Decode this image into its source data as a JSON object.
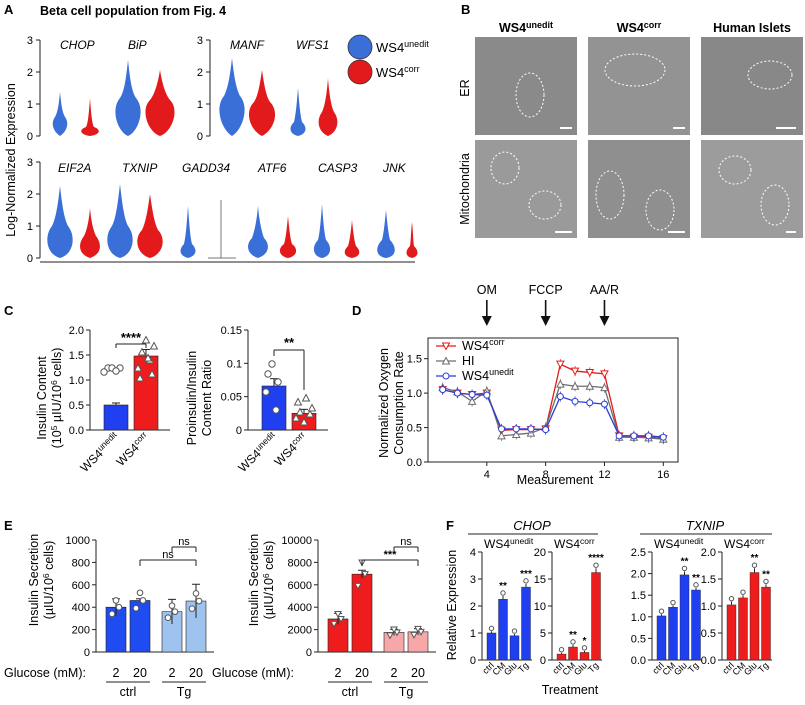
{
  "figure": {
    "panel_letters": {
      "A": "A",
      "B": "B",
      "C": "C",
      "D": "D",
      "E": "E",
      "F": "F"
    }
  },
  "panel_a": {
    "title": "Beta cell population from Fig. 4",
    "ylabel": "Log-Normalized Expression",
    "legend": [
      {
        "base": "WS4",
        "sup": "unedit",
        "color": "#3a6fd8"
      },
      {
        "base": "WS4",
        "sup": "corr",
        "color": "#e31a1c"
      }
    ],
    "row1_left": {
      "genes": [
        "CHOP",
        "BiP"
      ],
      "yticks": [
        "0",
        "1",
        "2",
        "3"
      ]
    },
    "row1_right": {
      "genes": [
        "MANF",
        "WFS1"
      ],
      "yticks": [
        "0",
        "1",
        "2",
        "3"
      ]
    },
    "row2": {
      "genes": [
        "EIF2A",
        "TXNIP",
        "GADD34",
        "ATF6",
        "CASP3",
        "JNK"
      ],
      "yticks": [
        "0",
        "1",
        "2",
        "3"
      ]
    }
  },
  "panel_b": {
    "columns": [
      {
        "base": "WS4",
        "sup": "unedit"
      },
      {
        "base": "WS4",
        "sup": "corr"
      },
      {
        "base": "Human Islets",
        "sup": ""
      }
    ],
    "rows": [
      "ER",
      "Mitochondria"
    ]
  },
  "panel_c": {
    "left": {
      "ylabel1": "Insulin Content",
      "ylabel2": "(10",
      "ylabel2_sup": "5",
      "ylabel2_mid": " µIU/10",
      "ylabel2_sup2": "6",
      "ylabel2_end": " cells)",
      "yticks": [
        "0.0",
        "0.5",
        "1.0",
        "1.5",
        "2.0"
      ],
      "significance": "****",
      "categories": [
        {
          "base": "WS4",
          "sup": "unedit"
        },
        {
          "base": "WS4",
          "sup": "corr"
        }
      ],
      "values": [
        0.5,
        1.48
      ],
      "errors": [
        0.04,
        0.13
      ]
    },
    "right": {
      "ylabel1": "Proinsulin/Insulin",
      "ylabel2": "Content Ratio",
      "yticks": [
        "0",
        "0.05",
        "0.1",
        "0.15"
      ],
      "significance": "**",
      "categories": [
        {
          "base": "WS4",
          "sup": "unedit"
        },
        {
          "base": "WS4",
          "sup": "corr"
        }
      ],
      "values": [
        0.066,
        0.025
      ],
      "errors": [
        0.011,
        0.006
      ]
    }
  },
  "panel_d": {
    "ylabel1": "Normalized Oxygen",
    "ylabel2": "Consumption Rate",
    "xlabel": "Measurement",
    "xticks": [
      "4",
      "8",
      "12",
      "16"
    ],
    "yticks": [
      "0.0",
      "0.5",
      "1.0",
      "1.5"
    ],
    "arrows": [
      "OM",
      "FCCP",
      "AA/R"
    ],
    "legend": [
      {
        "base": "WS4",
        "sup": "corr",
        "color": "#e31a1c",
        "marker": "triangle-down"
      },
      {
        "base": "HI",
        "sup": "",
        "color": "#6d6d6d",
        "marker": "triangle-up"
      },
      {
        "base": "WS4",
        "sup": "unedit",
        "color": "#2b3fd6",
        "marker": "circle"
      }
    ],
    "chart_data": {
      "type": "line",
      "x": [
        1,
        2,
        3,
        4,
        5,
        6,
        7,
        8,
        9,
        10,
        11,
        12,
        13,
        14,
        15,
        16
      ],
      "xlabel": "Measurement",
      "ylabel": "Normalized Oxygen Consumption Rate",
      "ylim": [
        0,
        1.8
      ],
      "series": [
        {
          "name": "WS4corr",
          "values": [
            1.05,
            1.0,
            0.98,
            1.0,
            0.46,
            0.47,
            0.47,
            0.48,
            1.42,
            1.32,
            1.3,
            1.28,
            0.38,
            0.36,
            0.36,
            0.34
          ]
        },
        {
          "name": "HI",
          "values": [
            1.08,
            1.02,
            0.88,
            1.03,
            0.38,
            0.4,
            0.42,
            0.5,
            1.13,
            1.1,
            1.1,
            1.08,
            0.36,
            0.36,
            0.35,
            0.33
          ]
        },
        {
          "name": "WS4unedit",
          "values": [
            1.05,
            1.0,
            0.98,
            0.97,
            0.48,
            0.48,
            0.48,
            0.47,
            0.95,
            0.88,
            0.86,
            0.84,
            0.38,
            0.38,
            0.38,
            0.36
          ]
        }
      ]
    }
  },
  "panel_e": {
    "ylabel1": "Insulin Secretion",
    "ylabel2": "(µIU/10",
    "ylabel2_sup": "6",
    "ylabel2_end": " cells)",
    "glucose_label": "Glucose (mM):",
    "dose_labels": [
      "2",
      "20",
      "2",
      "20"
    ],
    "group_labels": [
      "ctrl",
      "Tg"
    ],
    "left": {
      "yticks": [
        "0",
        "200",
        "400",
        "600",
        "800",
        "1000"
      ],
      "ymax": 1000,
      "values": [
        400,
        460,
        360,
        455
      ],
      "errors": [
        75,
        15,
        110,
        150
      ],
      "colors": [
        "#1f4cf0",
        "#1f4cf0",
        "#9dc3ee",
        "#9dc3ee"
      ],
      "sig_inner": "ns",
      "sig_outer": "ns"
    },
    "right": {
      "yticks": [
        "0",
        "2000",
        "4000",
        "6000",
        "8000",
        "10000"
      ],
      "ymax": 10000,
      "values": [
        2950,
        6950,
        1750,
        1800
      ],
      "errors": [
        500,
        350,
        280,
        280
      ],
      "colors": [
        "#ee1c1c",
        "#ee1c1c",
        "#f6a8a8",
        "#f6a8a8"
      ],
      "sig_inner": "ns",
      "sig_outer": "***"
    }
  },
  "panel_f": {
    "genes": [
      "CHOP",
      "TXNIP"
    ],
    "ylabel": "Relative Expression",
    "xlabel": "Treatment",
    "xcats": [
      "ctrl",
      "CM",
      "Glu",
      "Tg"
    ],
    "subpanels": [
      {
        "gene": "CHOP",
        "title_base": "WS4",
        "title_sup": "unedit",
        "yticks": [
          "0",
          "1",
          "2",
          "3",
          "4"
        ],
        "ymax": 4,
        "values": [
          1.0,
          2.25,
          0.9,
          2.7
        ],
        "errors": [
          0.06,
          0.12,
          0.06,
          0.12
        ],
        "sig": [
          "",
          "**",
          "",
          "***"
        ],
        "color": "#1f3ff0"
      },
      {
        "gene": "CHOP",
        "title_base": "WS4",
        "title_sup": "corr",
        "yticks": [
          "0",
          "5",
          "10",
          "15",
          "20"
        ],
        "ymax": 20,
        "values": [
          1.1,
          2.4,
          1.4,
          16.2
        ],
        "errors": [
          0.25,
          0.4,
          0.3,
          0.8
        ],
        "sig": [
          "",
          "**",
          "*",
          "****"
        ],
        "color": "#ee1c1c"
      },
      {
        "gene": "TXNIP",
        "title_base": "WS4",
        "title_sup": "unedit",
        "yticks": [
          "0.0",
          "0.5",
          "1.0",
          "1.5",
          "2.0",
          "2.5"
        ],
        "ymax": 2.5,
        "values": [
          1.02,
          1.22,
          1.97,
          1.62
        ],
        "errors": [
          0.04,
          0.04,
          0.08,
          0.05
        ],
        "sig": [
          "",
          "",
          "**",
          "**"
        ],
        "color": "#1f3ff0"
      },
      {
        "gene": "TXNIP",
        "title_base": "WS4",
        "title_sup": "corr",
        "yticks": [
          "0.0",
          "0.5",
          "1.0",
          "1.5",
          "2.0"
        ],
        "ymax": 2.0,
        "values": [
          1.02,
          1.15,
          1.62,
          1.35
        ],
        "errors": [
          0.06,
          0.05,
          0.08,
          0.05
        ],
        "sig": [
          "",
          "",
          "**",
          "**"
        ],
        "color": "#ee1c1c"
      }
    ]
  }
}
